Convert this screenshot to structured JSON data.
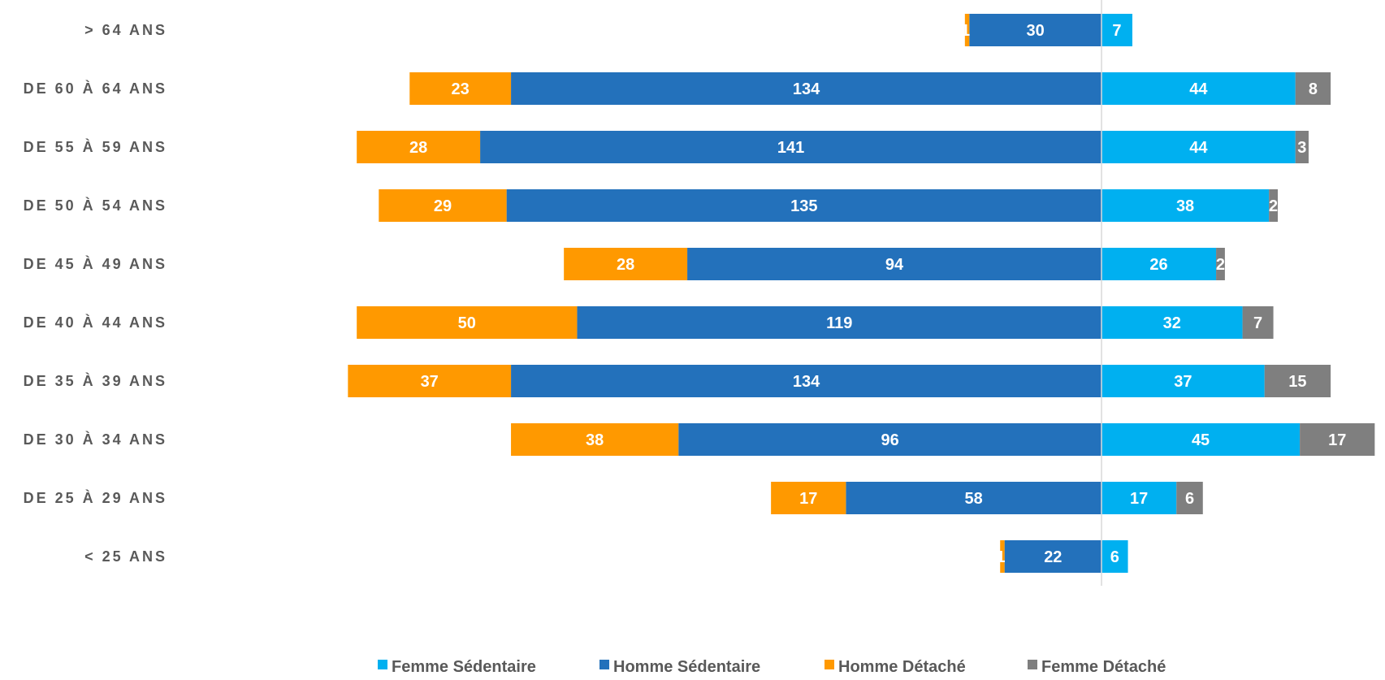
{
  "chart_data": {
    "type": "bar",
    "orientation": "horizontal",
    "stacking": "diverging",
    "categories": [
      "> 64 ANS",
      "DE 60 À 64 ANS",
      "DE 55 À 59 ANS",
      "DE 50 À 54 ANS",
      "DE 45 À 49 ANS",
      "DE 40 À 44 ANS",
      "DE 35 À 39 ANS",
      "DE 30 À 34 ANS",
      "DE 25 À 29 ANS",
      "< 25 ANS"
    ],
    "series": [
      {
        "name": "Femme Sédentaire",
        "side": "right",
        "color": "#00b0f0",
        "values": [
          7,
          44,
          44,
          38,
          26,
          32,
          37,
          45,
          17,
          6
        ]
      },
      {
        "name": "Homme Sédentaire",
        "side": "left",
        "color": "#2371bb",
        "values": [
          30,
          134,
          141,
          135,
          94,
          119,
          134,
          96,
          58,
          22
        ]
      },
      {
        "name": "Homme Détaché",
        "side": "left",
        "color": "#ff9900",
        "values": [
          1,
          23,
          28,
          29,
          28,
          50,
          37,
          38,
          17,
          1
        ]
      },
      {
        "name": "Femme Détaché",
        "side": "right",
        "color": "#7f7f7f",
        "values": [
          0,
          8,
          3,
          2,
          2,
          7,
          15,
          17,
          6,
          0
        ]
      }
    ],
    "legend_order": [
      "Femme Sédentaire",
      "Homme Sédentaire",
      "Homme Détaché",
      "Femme Détaché"
    ],
    "legend_position": "bottom",
    "data_labels": true,
    "grid": false
  }
}
